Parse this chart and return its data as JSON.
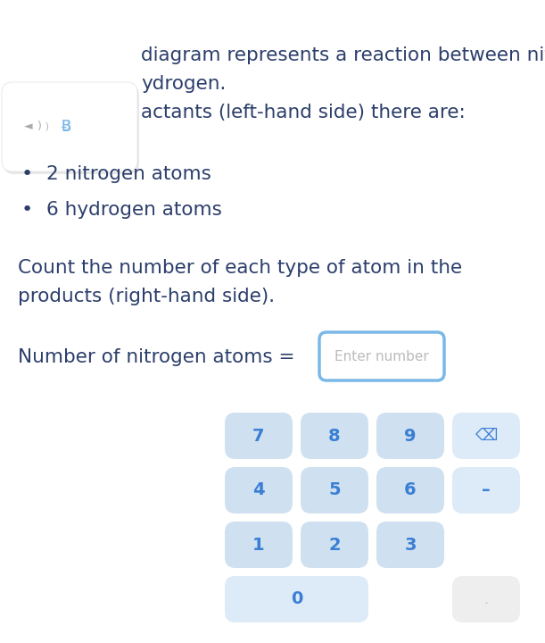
{
  "bg_color": "#f5f5f5",
  "card_color": "#ffffff",
  "text_color_dark": "#2c3e6b",
  "text_color_blue": "#3a7fd4",
  "text_color_gray": "#bbbbbb",
  "button_bg": "#cfe0f0",
  "button_bg_special": "#ddeaf8",
  "button_bg_dot": "#eeeeee",
  "input_border": "#7ab8e8",
  "input_bg": "#ffffff",
  "line1": "diagram represents a reaction between nitrog",
  "line2": "ydrogen.",
  "line3": "actants (left-hand side) there are:",
  "bullet1": "2 nitrogen atoms",
  "bullet2": "6 hydrogen atoms",
  "para1": "Count the number of each type of atom in the",
  "para2": "products (right-hand side).",
  "label": "Number of nitrogen atoms =",
  "placeholder": "Enter number",
  "speaker_color": "#aaaaaa",
  "bluetooth_color": "#7ab8e8",
  "left_panel_color": "#ffffff",
  "left_panel_shadow": "#e0e0e0"
}
